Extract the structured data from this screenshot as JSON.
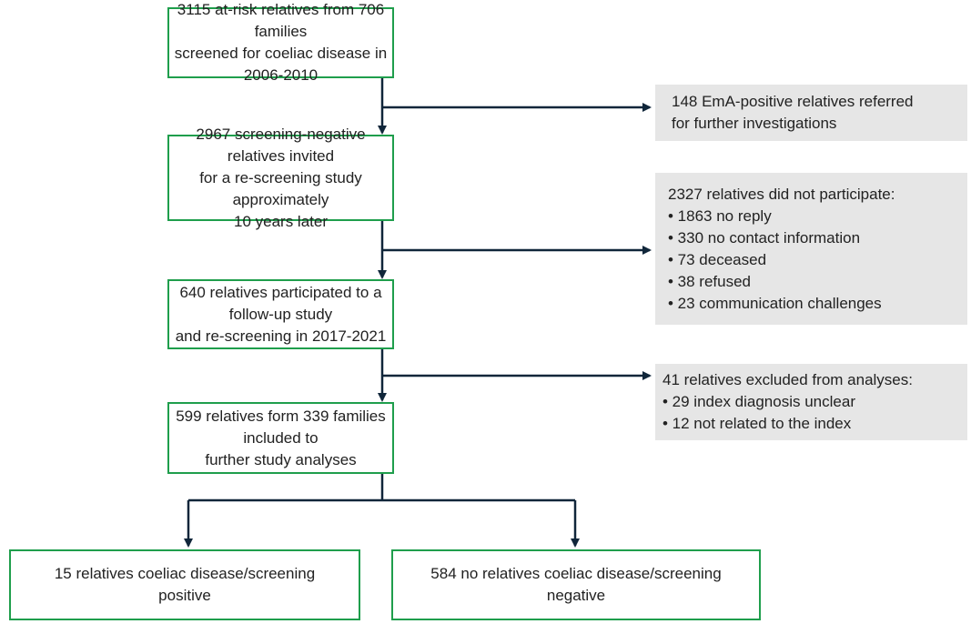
{
  "nodes": [
    {
      "lines": [
        "3115 at-risk relatives from 706 families",
        "screened for coeliac disease in 2006-2010"
      ]
    },
    {
      "lines": [
        "2967 screening-negative relatives invited",
        "for a re-screening study approximately",
        "10 years later"
      ]
    },
    {
      "lines": [
        "640 relatives participated to a follow-up study",
        "and re-screening in 2017-2021"
      ]
    },
    {
      "lines": [
        "599 relatives form 339 families included to",
        "further study analyses"
      ]
    },
    {
      "lines": [
        "15 relatives coeliac disease/screening",
        "positive"
      ]
    },
    {
      "lines": [
        "584 no relatives coeliac disease/screening",
        "negative"
      ]
    }
  ],
  "side_boxes": [
    {
      "lines": [
        "148 EmA-positive relatives referred",
        "for further investigations"
      ]
    },
    {
      "lines": [
        "2327 relatives did not participate:",
        "• 1863 no reply",
        "• 330 no contact information",
        "• 73 deceased",
        "• 38 refused",
        "• 23 communication challenges"
      ]
    },
    {
      "lines": [
        "41 relatives excluded from analyses:",
        "• 29 index diagnosis unclear",
        "• 12 not related to the index"
      ]
    }
  ]
}
